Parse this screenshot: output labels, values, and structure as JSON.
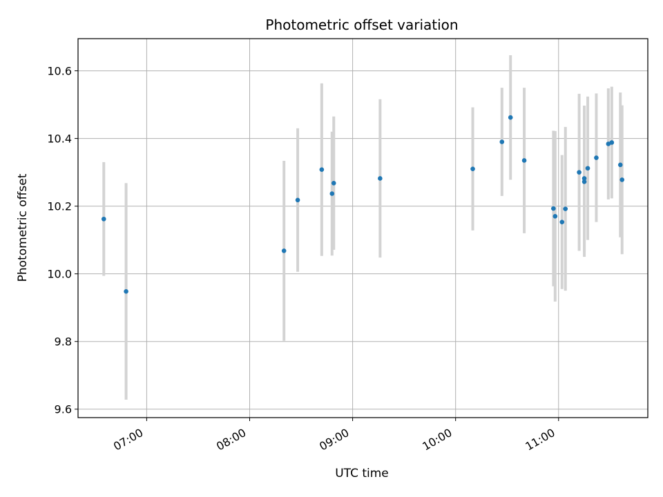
{
  "chart_data": {
    "type": "scatter",
    "title": "Photometric offset variation",
    "xlabel": "UTC time",
    "ylabel": "Photometric offset",
    "x_axis_kind": "time",
    "xlim": [
      "06:20",
      "11:52"
    ],
    "ylim": [
      9.575,
      10.695
    ],
    "xticks": [
      "07:00",
      "08:00",
      "09:00",
      "10:00",
      "11:00"
    ],
    "yticks": [
      9.6,
      9.8,
      10.0,
      10.2,
      10.4,
      10.6
    ],
    "ytick_labels": [
      "9.6",
      "9.8",
      "10.0",
      "10.2",
      "10.4",
      "10.6"
    ],
    "grid": true,
    "marker_color": "#1f77b4",
    "errorbar_color": "#d3d3d3",
    "points": [
      {
        "x": "06:35",
        "y": 10.162,
        "err": 0.168
      },
      {
        "x": "06:48",
        "y": 9.948,
        "err": 0.32
      },
      {
        "x": "08:20",
        "y": 10.068,
        "err": 0.266
      },
      {
        "x": "08:28",
        "y": 10.218,
        "err": 0.212
      },
      {
        "x": "08:42",
        "y": 10.308,
        "err": 0.255
      },
      {
        "x": "08:48",
        "y": 10.237,
        "err": 0.183
      },
      {
        "x": "08:49",
        "y": 10.268,
        "err": 0.197
      },
      {
        "x": "09:16",
        "y": 10.282,
        "err": 0.234
      },
      {
        "x": "10:10",
        "y": 10.31,
        "err": 0.182
      },
      {
        "x": "10:27",
        "y": 10.39,
        "err": 0.16
      },
      {
        "x": "10:32",
        "y": 10.462,
        "err": 0.184
      },
      {
        "x": "10:40",
        "y": 10.335,
        "err": 0.215
      },
      {
        "x": "10:57",
        "y": 10.193,
        "err": 0.23
      },
      {
        "x": "10:58",
        "y": 10.17,
        "err": 0.252
      },
      {
        "x": "11:02",
        "y": 10.153,
        "err": 0.198
      },
      {
        "x": "11:04",
        "y": 10.192,
        "err": 0.242
      },
      {
        "x": "11:12",
        "y": 10.3,
        "err": 0.232
      },
      {
        "x": "11:15",
        "y": 10.272,
        "err": 0.222
      },
      {
        "x": "11:15",
        "y": 10.282,
        "err": 0.215
      },
      {
        "x": "11:17",
        "y": 10.312,
        "err": 0.212
      },
      {
        "x": "11:22",
        "y": 10.343,
        "err": 0.19
      },
      {
        "x": "11:29",
        "y": 10.384,
        "err": 0.164
      },
      {
        "x": "11:31",
        "y": 10.388,
        "err": 0.165
      },
      {
        "x": "11:36",
        "y": 10.322,
        "err": 0.214
      },
      {
        "x": "11:37",
        "y": 10.278,
        "err": 0.22
      }
    ]
  }
}
